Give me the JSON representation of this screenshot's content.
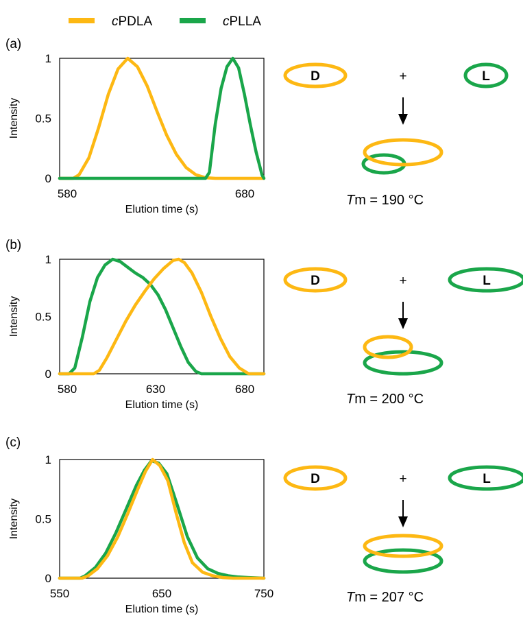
{
  "colors": {
    "cPDLA": "#FDB813",
    "cPLLA": "#1AA64A",
    "frame": "#000000"
  },
  "legend": {
    "cPDLA": {
      "italic": "c",
      "rest": "PDLA"
    },
    "cPLLA": {
      "italic": "c",
      "rest": "PLLA"
    }
  },
  "scheme": {
    "D_label": "D",
    "L_label": "L",
    "plus": "+",
    "arrow_icon": "down-arrow-icon"
  },
  "chart_data": [
    {
      "panel_label": "(a)",
      "type": "line",
      "xlabel": "Elution time (s)",
      "ylabel": "Intensity",
      "xlim": [
        580,
        685
      ],
      "ylim": [
        0,
        1
      ],
      "xticks": [
        "580",
        "680"
      ],
      "yticks": [
        "0",
        "0.5",
        "1"
      ],
      "series": [
        {
          "name": "cPDLA",
          "x": [
            580,
            587,
            590,
            595,
            600,
            605,
            610,
            615,
            620,
            625,
            630,
            635,
            640,
            645,
            650,
            655,
            660,
            663,
            685
          ],
          "y": [
            0,
            0,
            0.03,
            0.17,
            0.42,
            0.7,
            0.91,
            1.0,
            0.93,
            0.77,
            0.56,
            0.36,
            0.2,
            0.09,
            0.03,
            0.005,
            0,
            0,
            0
          ]
        },
        {
          "name": "cPLLA",
          "x": [
            580,
            655,
            657,
            660,
            663,
            666,
            669,
            672,
            675,
            678,
            681,
            684,
            685
          ],
          "y": [
            0,
            0,
            0.05,
            0.45,
            0.75,
            0.93,
            1.0,
            0.92,
            0.7,
            0.45,
            0.22,
            0.03,
            0
          ]
        }
      ],
      "Tm_label": {
        "italic": "T",
        "rest": "m = 190 °C"
      },
      "scheme_D_ring": "small",
      "scheme_L_ring": "small"
    },
    {
      "panel_label": "(b)",
      "type": "line",
      "xlabel": "Elution time (s)",
      "ylabel": "Intensity",
      "xlim": [
        580,
        688
      ],
      "ylim": [
        0,
        1
      ],
      "xticks": [
        "580",
        "630",
        "680"
      ],
      "yticks": [
        "0",
        "0.5",
        "1"
      ],
      "series": [
        {
          "name": "cPLLA",
          "x": [
            580,
            585,
            588,
            592,
            596,
            600,
            604,
            608,
            612,
            616,
            620,
            624,
            628,
            632,
            636,
            640,
            644,
            648,
            652,
            655,
            688
          ],
          "y": [
            0,
            0,
            0.05,
            0.32,
            0.63,
            0.84,
            0.95,
            1.0,
            0.98,
            0.93,
            0.88,
            0.84,
            0.78,
            0.69,
            0.56,
            0.4,
            0.24,
            0.1,
            0.02,
            0,
            0
          ]
        },
        {
          "name": "cPDLA",
          "x": [
            580,
            598,
            601,
            605,
            610,
            615,
            620,
            625,
            630,
            635,
            640,
            643,
            646,
            650,
            655,
            660,
            665,
            670,
            675,
            680,
            688
          ],
          "y": [
            0,
            0,
            0.03,
            0.14,
            0.3,
            0.46,
            0.6,
            0.72,
            0.83,
            0.92,
            0.99,
            1.0,
            0.97,
            0.88,
            0.71,
            0.5,
            0.31,
            0.15,
            0.05,
            0,
            0
          ]
        }
      ],
      "Tm_label": {
        "italic": "T",
        "rest": "m = 200 °C"
      },
      "scheme_D_ring": "small",
      "scheme_L_ring": "large"
    },
    {
      "panel_label": "(c)",
      "type": "line",
      "xlabel": "Elution time (s)",
      "ylabel": "Intensity",
      "xlim": [
        550,
        750
      ],
      "ylim": [
        0,
        1
      ],
      "xticks": [
        "550",
        "650",
        "750"
      ],
      "yticks": [
        "0",
        "0.5",
        "1"
      ],
      "series": [
        {
          "name": "cPLLA",
          "x": [
            550,
            570,
            575,
            585,
            595,
            605,
            615,
            625,
            633,
            640,
            647,
            655,
            665,
            675,
            685,
            695,
            705,
            715,
            725,
            735,
            750
          ],
          "y": [
            0,
            0,
            0.02,
            0.09,
            0.21,
            0.38,
            0.58,
            0.78,
            0.91,
            0.99,
            0.97,
            0.88,
            0.62,
            0.35,
            0.17,
            0.08,
            0.04,
            0.02,
            0.01,
            0.005,
            0
          ]
        },
        {
          "name": "cPDLA",
          "x": [
            550,
            572,
            578,
            587,
            597,
            607,
            617,
            627,
            634,
            641,
            648,
            656,
            664,
            672,
            680,
            690,
            700,
            710,
            720,
            750
          ],
          "y": [
            0,
            0,
            0.02,
            0.08,
            0.19,
            0.35,
            0.55,
            0.76,
            0.9,
            1.0,
            0.95,
            0.82,
            0.55,
            0.3,
            0.13,
            0.05,
            0.02,
            0.005,
            0,
            0
          ]
        }
      ],
      "Tm_label": {
        "italic": "T",
        "rest": "m = 207 °C"
      },
      "scheme_D_ring": "small",
      "scheme_L_ring": "large"
    }
  ]
}
